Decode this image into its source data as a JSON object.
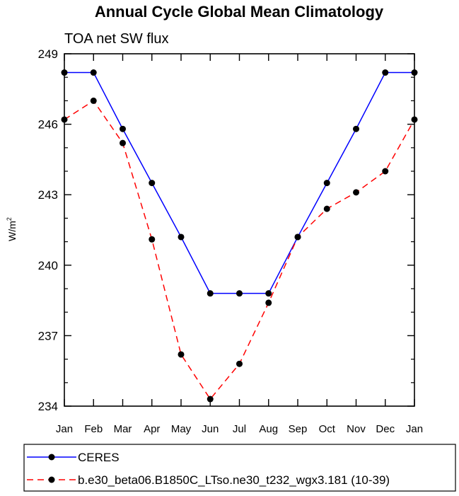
{
  "chart_data": {
    "type": "line",
    "title": "Annual Cycle Global Mean Climatology",
    "subtitle": "TOA net SW flux",
    "xlabel": "",
    "ylabel": "W/m",
    "ylabel_superscript": "2",
    "categories": [
      "Jan",
      "Feb",
      "Mar",
      "Apr",
      "May",
      "Jun",
      "Jul",
      "Aug",
      "Sep",
      "Oct",
      "Nov",
      "Dec",
      "Jan"
    ],
    "ylim": [
      234,
      249
    ],
    "yticks": [
      234,
      237,
      240,
      243,
      246,
      249
    ],
    "grid": false,
    "legend_position": "bottom",
    "series": [
      {
        "name": "CERES",
        "color": "#0000ff",
        "dash": "solid",
        "marker": "filled-circle",
        "values": [
          248.2,
          248.2,
          245.8,
          243.5,
          241.2,
          238.8,
          238.8,
          238.8,
          241.2,
          243.5,
          245.8,
          248.2,
          248.2
        ]
      },
      {
        "name": "b.e30_beta06.B1850C_LTso.ne30_t232_wgx3.181 (10-39)",
        "color": "#ff0000",
        "dash": "dashed",
        "marker": "filled-circle",
        "values": [
          246.2,
          247.0,
          245.2,
          241.1,
          236.2,
          234.3,
          235.8,
          238.4,
          241.2,
          242.4,
          243.1,
          244.0,
          246.2
        ]
      }
    ]
  }
}
